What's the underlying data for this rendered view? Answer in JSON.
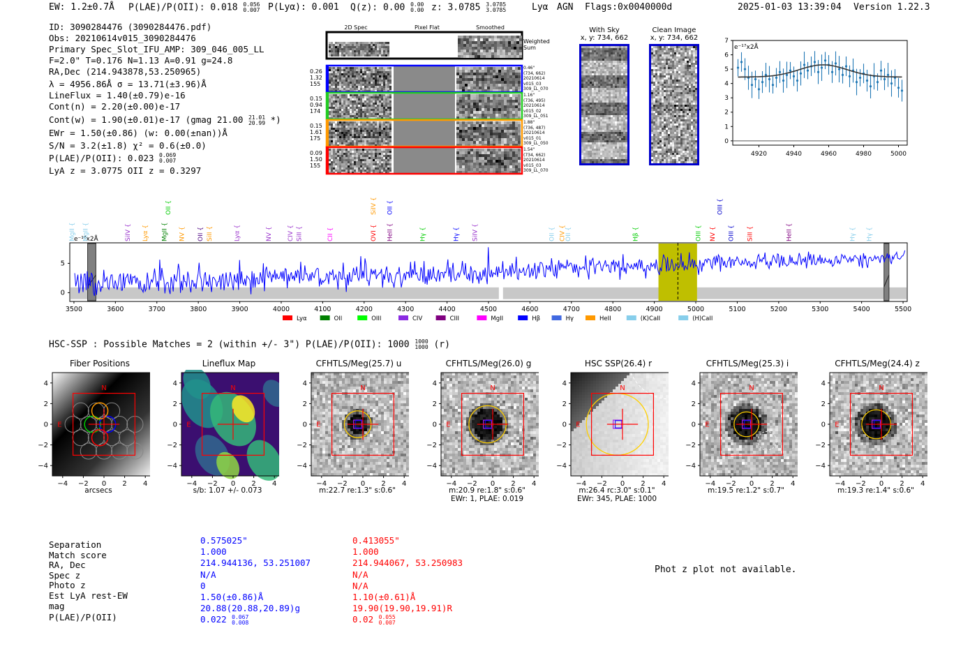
{
  "header": {
    "ew": "EW: 1.2±0.7Å",
    "plae": "P(LAE)/P(OII): 0.018",
    "plae_hi": "0.056",
    "plae_lo": "0.007",
    "plya": "P(Lyα): 0.001",
    "qz": "Q(z): 0.00",
    "qz_hi": "0.00",
    "qz_lo": "0.00",
    "z": "z: 3.0785",
    "z_hi": "3.0785",
    "z_lo": "3.0785",
    "line": "Lyα",
    "agn": "AGN",
    "flags": "Flags:0x0040000d",
    "timestamp": "2025-01-03 13:39:04",
    "version": "Version 1.22.3"
  },
  "info": {
    "lines": [
      "ID: 3090284476 (3090284476.pdf)",
      "Obs: 20210614v015_3090284476",
      "Primary Spec_Slot_IFU_AMP: 309_046_005_LL",
      "F=2.0\"  T=0.176  N=1.13  A=0.91  g=24.8",
      "RA,Dec (214.943878,53.250965)",
      "λ = 4956.86Å  σ = 13.71(±3.96)Å",
      "LineFlux = 1.40(±0.79)e-16",
      "Cont(n) = 2.20(±0.00)e-17",
      "Cont(w) = 1.90(±0.01)e-17 (gmag 21.00",
      "EWr = 1.50(±0.86) (w: 0.00(±nan))Å",
      "S/N = 3.2(±1.8)  χ² = 0.6(±0.0)",
      "P(LAE)/P(OII): 0.023",
      "LyA z = 3.0775  OII z = 0.3297"
    ],
    "gmag_hi": "21.01",
    "gmag_lo": "20.99",
    "gmag_tail": "*)",
    "plae_hi": "0.069",
    "plae_lo": "0.007"
  },
  "cutouts2d": {
    "col_headers": [
      "2D Spec",
      "Pixel Flat",
      "Smoothed"
    ],
    "weighted_label": "Weighted Sum",
    "rows": [
      {
        "color": "#0000ff",
        "left": [
          "0.26",
          "1.32",
          "155"
        ],
        "right": [
          "0.46\"",
          "(734, 662)",
          "20210614",
          "v015_03",
          "309_LL_070"
        ]
      },
      {
        "color": "#22cc22",
        "left": [
          "0.15",
          "0.94",
          "174"
        ],
        "right": [
          "1.16\"",
          "(736, 495)",
          "20210614",
          "v015_02",
          "309_LL_051"
        ]
      },
      {
        "color": "#ff9900",
        "left": [
          "0.15",
          "1.61",
          "175"
        ],
        "right": [
          "1.88\"",
          "(736, 487)",
          "20210614",
          "v015_01",
          "309_LL_050"
        ]
      },
      {
        "color": "#ff0000",
        "left": [
          "0.09",
          "1.50",
          "155"
        ],
        "right": [
          "1.54\"",
          "(734, 662)",
          "20210614",
          "v015_03",
          "309_LL_070"
        ]
      }
    ]
  },
  "sky": {
    "with_sky": "With Sky",
    "with_sky_xy": "x, y: 734, 662",
    "clean": "Clean Image",
    "clean_xy": "x, y: 734, 662"
  },
  "zoom_chart": {
    "ylabel": "e⁻¹⁷x2Å",
    "xticks": [
      "4920",
      "4940",
      "4960",
      "4980",
      "5000"
    ],
    "yticks": [
      "0",
      "1",
      "2",
      "3",
      "4",
      "5",
      "6",
      "7"
    ]
  },
  "full_chart": {
    "ylabel": "e⁻¹⁷x2Å",
    "xticks": [
      "3500",
      "3600",
      "3700",
      "3800",
      "3900",
      "4000",
      "4100",
      "4200",
      "4300",
      "4400",
      "4500",
      "4600",
      "4700",
      "4800",
      "4900",
      "5000",
      "5100",
      "5200",
      "5300",
      "5400",
      "5500"
    ],
    "yticks": [
      "0",
      "5"
    ],
    "lines": [
      {
        "label": "MgII",
        "color": "#87ceeb",
        "x": 3495,
        "row": 1
      },
      {
        "label": "MgII",
        "color": "#87ceeb",
        "x": 3528,
        "row": 1
      },
      {
        "label": "SiIV",
        "color": "#9932cc",
        "x": 3630,
        "row": 1
      },
      {
        "label": "Lyα",
        "color": "#ff9900",
        "x": 3672,
        "row": 1
      },
      {
        "label": "MgII",
        "color": "#008000",
        "x": 3718,
        "row": 1
      },
      {
        "label": "OII",
        "color": "#00cc00",
        "x": 3727,
        "row": 0
      },
      {
        "label": "NV",
        "color": "#ff9900",
        "x": 3760,
        "row": 1
      },
      {
        "label": "OII",
        "color": "#4b0082",
        "x": 3805,
        "row": 1
      },
      {
        "label": "SiII",
        "color": "#ff9900",
        "x": 3827,
        "row": 1
      },
      {
        "label": "Lyα",
        "color": "#9932cc",
        "x": 3893,
        "row": 1
      },
      {
        "label": "NV",
        "color": "#9932cc",
        "x": 3970,
        "row": 1
      },
      {
        "label": "CIV",
        "color": "#9932cc",
        "x": 4022,
        "row": 1
      },
      {
        "label": "SiII",
        "color": "#9932cc",
        "x": 4043,
        "row": 1
      },
      {
        "label": "CII",
        "color": "#ff00ff",
        "x": 4118,
        "row": 1
      },
      {
        "label": "SiIV",
        "color": "#ff9900",
        "x": 4222,
        "row": 0
      },
      {
        "label": "OVI",
        "color": "#ff0000",
        "x": 4222,
        "row": 1
      },
      {
        "label": "OII",
        "color": "#0000ff",
        "x": 4262,
        "row": 0
      },
      {
        "label": "HeII",
        "color": "#800080",
        "x": 4262,
        "row": 1
      },
      {
        "label": "Hγ",
        "color": "#00cc00",
        "x": 4341,
        "row": 1
      },
      {
        "label": "Hγ",
        "color": "#0000ff",
        "x": 4422,
        "row": 1
      },
      {
        "label": "SiIV",
        "color": "#9932cc",
        "x": 4467,
        "row": 1
      },
      {
        "label": "OII",
        "color": "#87ceeb",
        "x": 4652,
        "row": 1
      },
      {
        "label": "CIV",
        "color": "#ff9900",
        "x": 4678,
        "row": 1
      },
      {
        "label": "OII",
        "color": "#87ceeb",
        "x": 4692,
        "row": 1
      },
      {
        "label": "Hβ",
        "color": "#00cc00",
        "x": 4854,
        "row": 1
      },
      {
        "label": "OIII",
        "color": "#00cc00",
        "x": 5006,
        "row": 1
      },
      {
        "label": "NV",
        "color": "#ff0000",
        "x": 5040,
        "row": 1
      },
      {
        "label": "OIII",
        "color": "#0000cc",
        "x": 5058,
        "row": 0
      },
      {
        "label": "OIII",
        "color": "#0000cc",
        "x": 5085,
        "row": 1
      },
      {
        "label": "SiII",
        "color": "#ff0000",
        "x": 5130,
        "row": 1
      },
      {
        "label": "HeII",
        "color": "#800080",
        "x": 5225,
        "row": 1
      },
      {
        "label": "Hγ",
        "color": "#87ceeb",
        "x": 5378,
        "row": 1
      },
      {
        "label": "Hγ",
        "color": "#87ceeb",
        "x": 5418,
        "row": 1
      }
    ],
    "legend": [
      {
        "label": "Lyα",
        "color": "#ff0000"
      },
      {
        "label": "OII",
        "color": "#008000"
      },
      {
        "label": "OIII",
        "color": "#00ff00"
      },
      {
        "label": "CIV",
        "color": "#8a2be2"
      },
      {
        "label": "CIII",
        "color": "#800080"
      },
      {
        "label": "MgII",
        "color": "#ff00ff"
      },
      {
        "label": "Hβ",
        "color": "#0000ff"
      },
      {
        "label": "Hγ",
        "color": "#4169e1"
      },
      {
        "label": "HeII",
        "color": "#ff9900"
      },
      {
        "label": "(K)CaII",
        "color": "#87ceeb"
      },
      {
        "label": "(H)CaII",
        "color": "#87ceeb"
      }
    ]
  },
  "hsc": {
    "heading": "HSC-SSP : Possible Matches = 2 (within +/- 3\")  P(LAE)/P(OII): 1000",
    "heading_hi": "1000",
    "heading_lo": "1000",
    "heading_tail": "(r)"
  },
  "cutouts": [
    {
      "title": "Fiber Positions",
      "cap1": "arcsecs",
      "cap2": ""
    },
    {
      "title": "Lineflux Map",
      "cap1": "s/b: 1.07 +/- 0.073",
      "cap2": ""
    },
    {
      "title": "CFHTLS/Meg(25.7) u",
      "cap1": "m:22.7  re:1.3\"  s:0.6\"",
      "cap2": ""
    },
    {
      "title": "CFHTLS/Meg(26.0) g",
      "cap1": "m:20.9  re:1.8\"  s:0.6\"",
      "cap2": "EWr: 1, PLAE: 0.019"
    },
    {
      "title": "HSC SSP(26.4) r",
      "cap1": "m:26.4 rc:3.0\"  s:0.1\"",
      "cap2": "EWr: 345, PLAE: 1000"
    },
    {
      "title": "CFHTLS/Meg(25.3) i",
      "cap1": "m:19.5  re:1.2\"  s:0.7\"",
      "cap2": ""
    },
    {
      "title": "CFHTLS/Meg(24.4) z",
      "cap1": "m:19.3  re:1.4\"  s:0.6\"",
      "cap2": ""
    }
  ],
  "cutout_axis": {
    "xticks": [
      "−4",
      "−2",
      "0",
      "2",
      "4"
    ],
    "yticks": [
      "4",
      "2",
      "0",
      "−2",
      "−4"
    ],
    "north": "N",
    "east": "E"
  },
  "match_table": {
    "labels": [
      "Separation",
      "Match score",
      "RA, Dec",
      "Spec z",
      "Photo z",
      "Est LyA rest-EW",
      "mag",
      "P(LAE)/P(OII)"
    ],
    "blue": [
      "0.575025\"",
      "1.000",
      "214.944136, 53.251007",
      "N/A",
      "0",
      "1.50(±0.86)Å",
      "20.88(20.88,20.89)g",
      "0.022"
    ],
    "blue_plae_hi": "0.067",
    "blue_plae_lo": "0.008",
    "red": [
      "0.413055\"",
      "1.000",
      "214.944067, 53.250983",
      "N/A",
      "N/A",
      "1.10(±0.61)Å",
      "19.90(19.90,19.91)R",
      "0.02"
    ],
    "red_plae_hi": "0.055",
    "red_plae_lo": "0.007"
  },
  "photz_msg": "Phot z plot not available.",
  "chart_data": [
    {
      "type": "scatter",
      "title": "",
      "xlabel": "",
      "ylabel": "e⁻¹⁷x2Å",
      "xlim": [
        4905,
        5005
      ],
      "ylim": [
        -0.3,
        7
      ],
      "x": [
        4908,
        4910,
        4912,
        4914,
        4916,
        4918,
        4920,
        4922,
        4924,
        4926,
        4928,
        4930,
        4932,
        4934,
        4936,
        4938,
        4940,
        4942,
        4944,
        4946,
        4948,
        4950,
        4952,
        4954,
        4956,
        4958,
        4960,
        4962,
        4964,
        4966,
        4968,
        4970,
        4972,
        4974,
        4976,
        4978,
        4980,
        4982,
        4984,
        4986,
        4988,
        4990,
        4992,
        4994,
        4996,
        4998,
        5000,
        5002
      ],
      "y": [
        5.1,
        5.5,
        5.0,
        4.4,
        3.9,
        4.3,
        3.6,
        4.1,
        4.6,
        4.3,
        3.9,
        4.4,
        4.8,
        4.2,
        4.6,
        4.9,
        4.5,
        4.2,
        4.7,
        5.3,
        4.9,
        5.2,
        5.5,
        4.8,
        5.1,
        5.6,
        5.3,
        4.8,
        5.4,
        5.0,
        4.6,
        5.2,
        4.5,
        4.9,
        4.1,
        4.4,
        4.7,
        4.2,
        3.8,
        4.5,
        4.1,
        4.9,
        4.3,
        4.6,
        4.0,
        4.4,
        3.7,
        3.5
      ],
      "fit": {
        "baseline": 4.45,
        "peak": 5.3,
        "center": 4956.86,
        "sigma": 13.71
      }
    },
    {
      "type": "line",
      "title": "",
      "xlabel": "",
      "ylabel": "e⁻¹⁷x2Å",
      "xlim": [
        3490,
        5510
      ],
      "ylim": [
        -1.5,
        8.5
      ],
      "highlight": [
        4910,
        5003
      ],
      "center_line": 4956.86,
      "masked": [
        [
          3533,
          3553
        ],
        [
          5454,
          5466
        ]
      ],
      "series": [
        {
          "name": "",
          "trend_start": 1.4,
          "trend_end": 6.0,
          "noise": 1.3,
          "color": "#0000ff"
        }
      ]
    }
  ]
}
